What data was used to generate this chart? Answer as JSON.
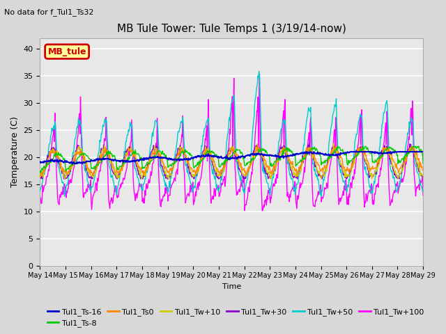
{
  "title": "MB Tule Tower: Tule Temps 1 (3/19/14-now)",
  "top_note": "No data for f_Tul1_Ts32",
  "ylabel": "Temperature (C)",
  "xlabel": "Time",
  "ylim": [
    0,
    42
  ],
  "yticks": [
    0,
    5,
    10,
    15,
    20,
    25,
    30,
    35,
    40
  ],
  "x_tick_labels": [
    "May 14",
    "May 15",
    "May 16",
    "May 17",
    "May 18",
    "May 19",
    "May 20",
    "May 21",
    "May 22",
    "May 23",
    "May 24",
    "May 25",
    "May 26",
    "May 27",
    "May 28",
    "May 29"
  ],
  "legend_box_label": "MB_tule",
  "legend_box_color": "#ffff99",
  "legend_box_border": "#cc0000",
  "series_colors": {
    "Tul1_Ts-16": "#0000cc",
    "Tul1_Ts-8": "#00cc00",
    "Tul1_Ts0": "#ff8800",
    "Tul1_Tw+10": "#cccc00",
    "Tul1_Tw+30": "#8800cc",
    "Tul1_Tw+50": "#00cccc",
    "Tul1_Tw+100": "#ff00ff"
  },
  "bg_color": "#d8d8d8",
  "plot_bg_color": "#e8e8e8",
  "grid_color": "#ffffff"
}
